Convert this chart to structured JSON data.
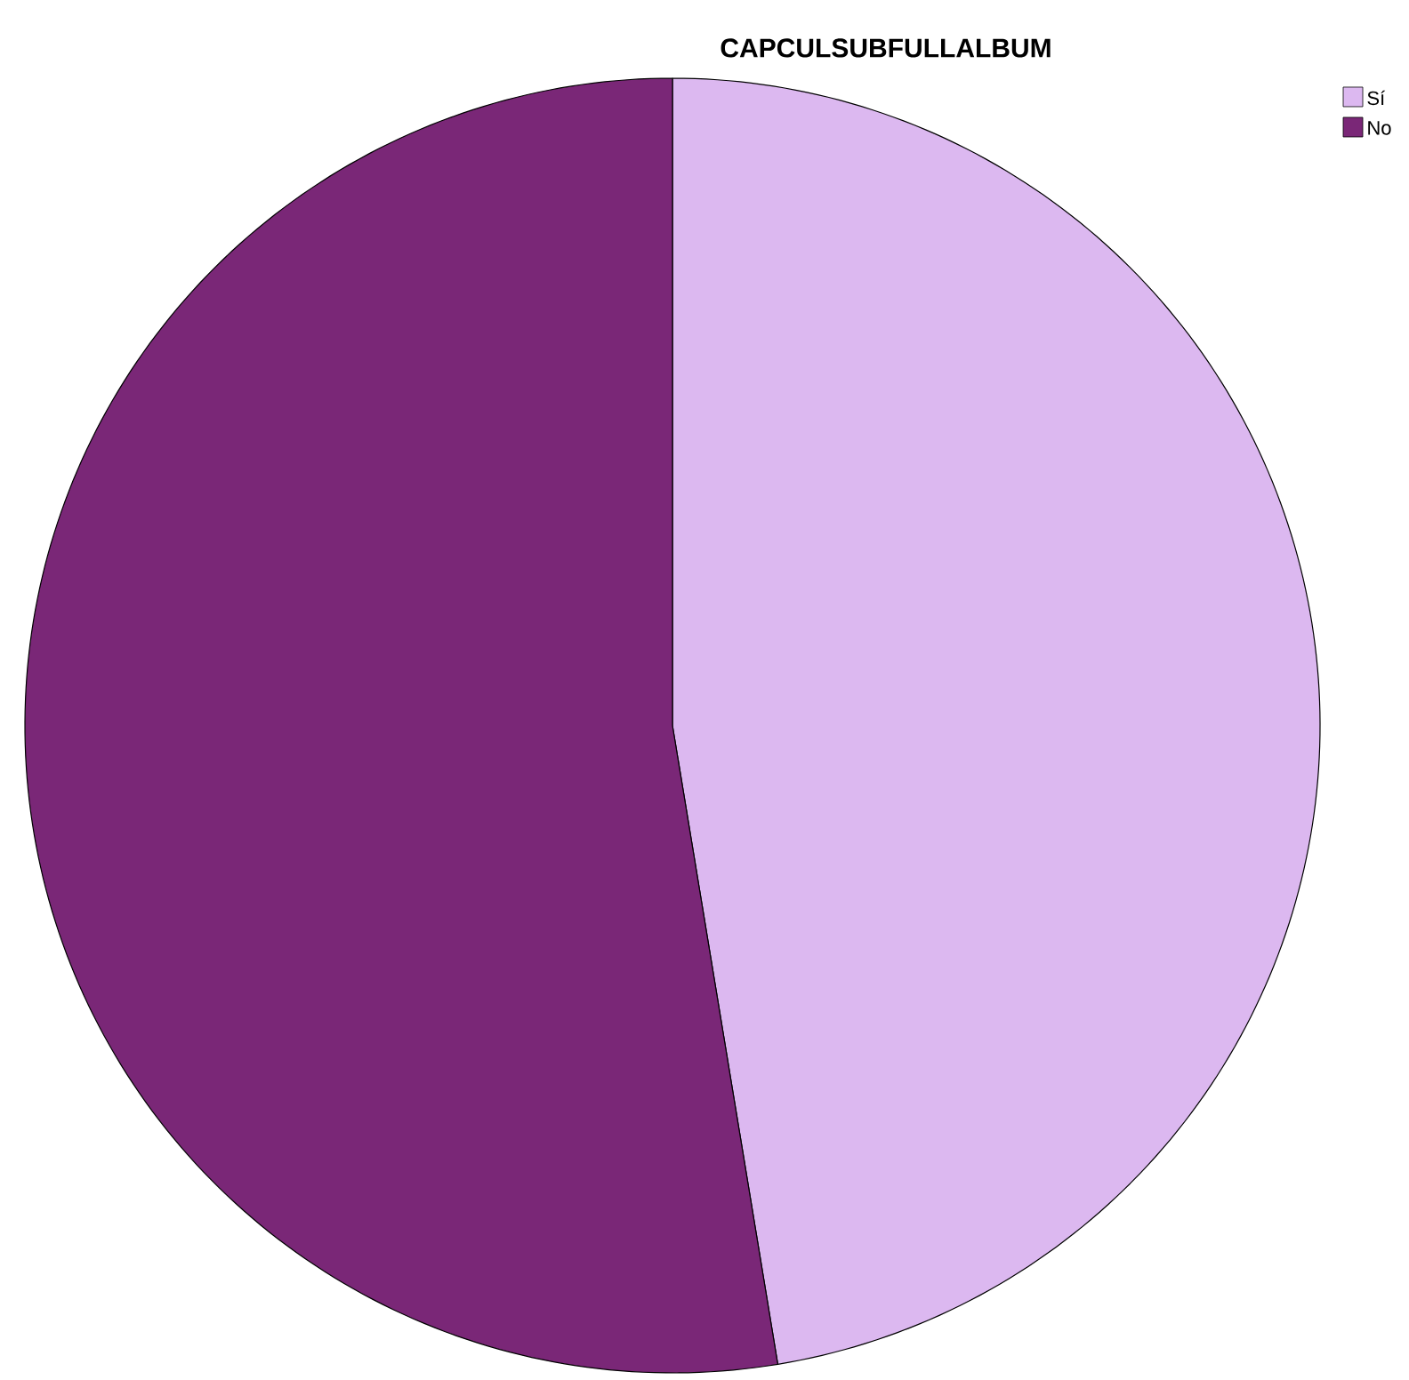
{
  "chart_data": {
    "type": "pie",
    "title": "CAPCULSUBFULLALBUM",
    "categories": [
      "Sí",
      "No"
    ],
    "values": [
      47.4,
      52.6
    ],
    "colors": [
      "#dcb8f0",
      "#7a2777"
    ],
    "legend": "top right"
  }
}
